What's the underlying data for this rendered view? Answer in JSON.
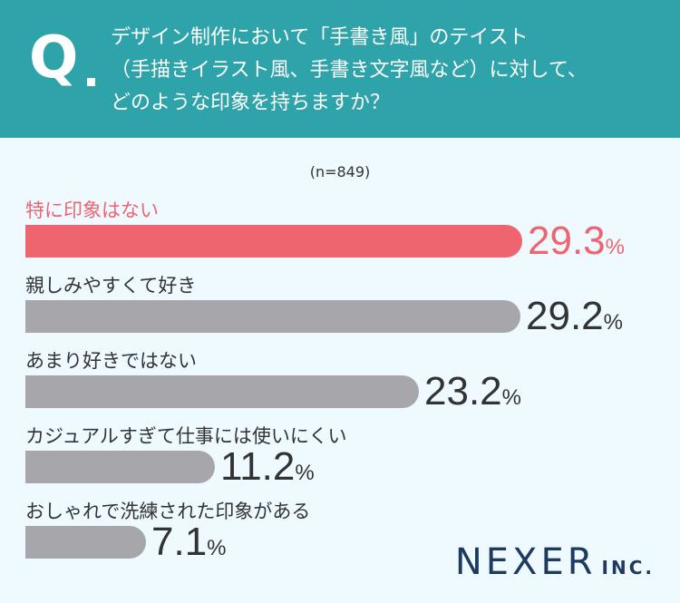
{
  "header": {
    "q_letter": "Q",
    "question_lines": [
      "デザイン制作において「手書き風」のテイスト",
      "（手描きイラスト風、手書き文字風など）に対して、",
      "どのような印象を持ちますか？"
    ]
  },
  "colors": {
    "header_bg": "#2ea3aa",
    "highlight": "#ee6570",
    "bar_gray": "#a6a6ab",
    "text": "#333333"
  },
  "logo": {
    "main": "NEXER",
    "suffix": "INC."
  },
  "chart_data": {
    "type": "bar",
    "orientation": "horizontal",
    "note": "(n=849)",
    "categories": [
      "特に印象はない",
      "親しみやすくて好き",
      "あまり好きではない",
      "カジュアルすぎて仕事には使いにくい",
      "おしゃれで洗練された印象がある"
    ],
    "values": [
      29.3,
      29.2,
      23.2,
      11.2,
      7.1
    ],
    "value_labels": [
      "29.3",
      "29.2",
      "23.2",
      "11.2",
      "7.1"
    ],
    "unit": "%",
    "highlight_index": 0,
    "xlim": [
      0,
      29.3
    ]
  }
}
